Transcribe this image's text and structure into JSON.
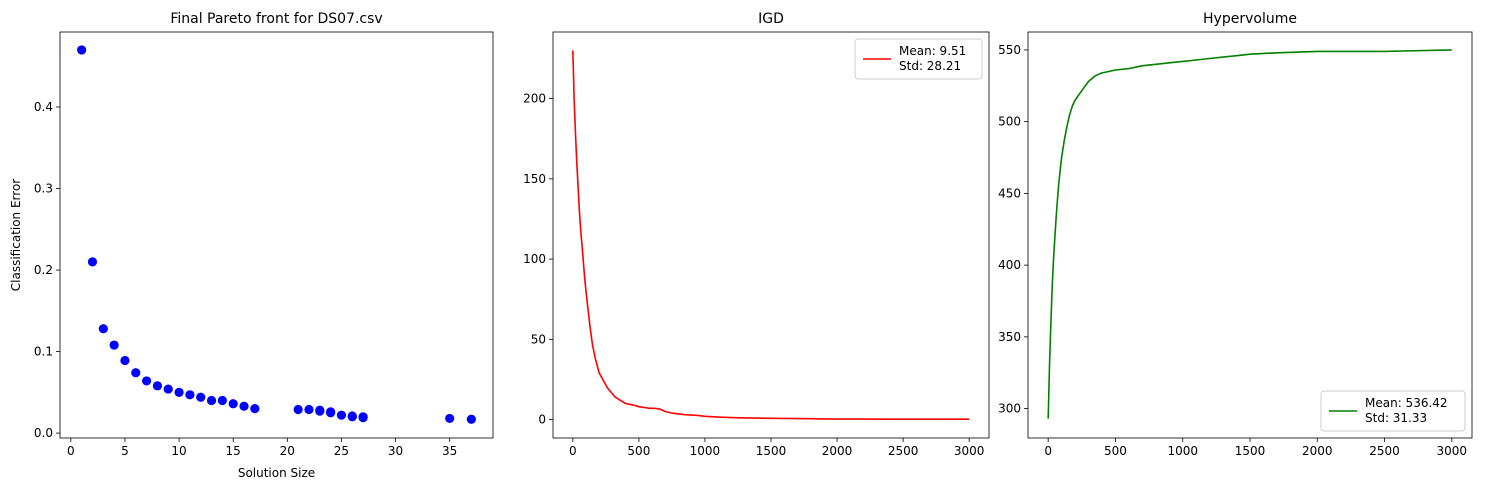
{
  "chart_data": [
    {
      "type": "scatter",
      "title": "Final Pareto front for DS07.csv",
      "xlabel": "Solution Size",
      "ylabel": "Classification Error",
      "xlim": [
        -1,
        39
      ],
      "ylim": [
        -0.006,
        0.492
      ],
      "xticks": [
        0,
        5,
        10,
        15,
        20,
        25,
        30,
        35
      ],
      "yticks": [
        0.0,
        0.1,
        0.2,
        0.3,
        0.4
      ],
      "ytick_labels": [
        "0.0",
        "0.1",
        "0.2",
        "0.3",
        "0.4"
      ],
      "color": "#0000ff",
      "points": [
        [
          1,
          0.47
        ],
        [
          2,
          0.21
        ],
        [
          3,
          0.128
        ],
        [
          4,
          0.108
        ],
        [
          5,
          0.089
        ],
        [
          6,
          0.074
        ],
        [
          7,
          0.064
        ],
        [
          8,
          0.058
        ],
        [
          9,
          0.054
        ],
        [
          10,
          0.05
        ],
        [
          11,
          0.047
        ],
        [
          12,
          0.044
        ],
        [
          13,
          0.04
        ],
        [
          14,
          0.04
        ],
        [
          15,
          0.036
        ],
        [
          16,
          0.033
        ],
        [
          17,
          0.03
        ],
        [
          21,
          0.029
        ],
        [
          22,
          0.029
        ],
        [
          23,
          0.028
        ],
        [
          23,
          0.027
        ],
        [
          24,
          0.026
        ],
        [
          24,
          0.025
        ],
        [
          25,
          0.022
        ],
        [
          26,
          0.021
        ],
        [
          26,
          0.02
        ],
        [
          27,
          0.02
        ],
        [
          27,
          0.019
        ],
        [
          35,
          0.018
        ],
        [
          37,
          0.017
        ]
      ]
    },
    {
      "type": "line",
      "title": "IGD",
      "xlabel": "",
      "ylabel": "",
      "xlim": [
        -150,
        3150
      ],
      "ylim": [
        -11.5,
        241.5
      ],
      "xticks": [
        0,
        500,
        1000,
        1500,
        2000,
        2500,
        3000
      ],
      "yticks": [
        0,
        50,
        100,
        150,
        200
      ],
      "color": "#ff0000",
      "legend": {
        "placement": "upper right",
        "lines": [
          "Mean: 9.51",
          "Std: 28.21"
        ]
      },
      "series": [
        {
          "x": [
            0,
            5,
            10,
            20,
            30,
            40,
            50,
            60,
            70,
            80,
            90,
            100,
            110,
            120,
            130,
            140,
            150,
            160,
            170,
            180,
            190,
            200,
            220,
            240,
            260,
            280,
            300,
            320,
            340,
            360,
            380,
            400,
            430,
            460,
            500,
            540,
            580,
            620,
            660,
            700,
            750,
            800,
            850,
            900,
            950,
            1000,
            1100,
            1200,
            1300,
            1400,
            1500,
            1600,
            1700,
            1800,
            1900,
            2000,
            2200,
            2400,
            2600,
            2800,
            3000
          ],
          "y": [
            230,
            215,
            200,
            178,
            160,
            145,
            130,
            118,
            108,
            98,
            88,
            80,
            72,
            65,
            58,
            52,
            46,
            42,
            38,
            35,
            32,
            29,
            26,
            23,
            20,
            18,
            16,
            14,
            13,
            12,
            11,
            10,
            9.5,
            9,
            8,
            7.5,
            7,
            7,
            6.5,
            5,
            4,
            3.5,
            3,
            2.8,
            2.5,
            2,
            1.5,
            1.2,
            1,
            0.9,
            0.8,
            0.7,
            0.6,
            0.5,
            0.4,
            0.3,
            0.3,
            0.2,
            0.2,
            0.2,
            0.2
          ]
        }
      ]
    },
    {
      "type": "line",
      "title": "Hypervolume",
      "xlabel": "",
      "ylabel": "",
      "xlim": [
        -150,
        3150
      ],
      "ylim": [
        279.5,
        562.5
      ],
      "xticks": [
        0,
        500,
        1000,
        1500,
        2000,
        2500,
        3000
      ],
      "yticks": [
        300,
        350,
        400,
        450,
        500,
        550
      ],
      "color": "#008000",
      "legend": {
        "placement": "lower right",
        "lines": [
          "Mean: 536.42",
          "Std: 31.33"
        ]
      },
      "series": [
        {
          "x": [
            0,
            10,
            20,
            30,
            40,
            50,
            60,
            70,
            80,
            90,
            100,
            120,
            140,
            160,
            180,
            200,
            230,
            260,
            300,
            350,
            400,
            450,
            500,
            600,
            700,
            800,
            900,
            1000,
            1100,
            1200,
            1300,
            1400,
            1500,
            1700,
            2000,
            2500,
            3000
          ],
          "y": [
            293,
            330,
            360,
            385,
            405,
            420,
            435,
            447,
            458,
            467,
            475,
            487,
            497,
            505,
            511,
            515,
            519,
            523,
            528,
            532,
            534,
            535,
            536,
            537,
            539,
            540,
            541,
            542,
            543,
            544,
            545,
            546,
            547,
            548,
            549,
            549,
            550
          ]
        }
      ]
    }
  ]
}
